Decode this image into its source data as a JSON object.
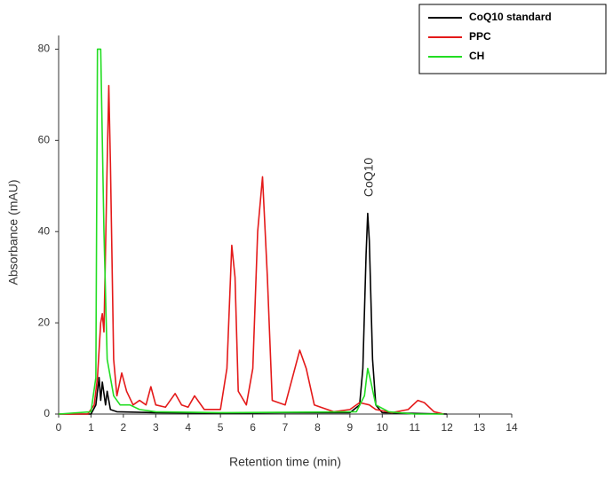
{
  "chart_data": {
    "type": "line",
    "x_label": "Retention time (min)",
    "y_label": "Absorbance (mAU)",
    "annotation": "CoQ10",
    "xlim": [
      0,
      14
    ],
    "xticks": [
      0,
      1,
      2,
      3,
      4,
      5,
      6,
      7,
      8,
      9,
      10,
      11,
      12,
      13,
      14
    ],
    "ylim": [
      0,
      83
    ],
    "yticks": [
      0,
      20,
      40,
      60,
      80
    ],
    "legend": "top-right",
    "series": [
      {
        "name": "CoQ10 standard",
        "color": "#000000",
        "x": [
          0,
          1.0,
          1.15,
          1.25,
          1.3,
          1.35,
          1.45,
          1.5,
          1.6,
          1.8,
          3,
          5,
          7,
          9.0,
          9.3,
          9.4,
          9.5,
          9.55,
          9.6,
          9.7,
          9.8,
          10,
          12
        ],
        "values": [
          0,
          0,
          2,
          8,
          3,
          7,
          2,
          5,
          1,
          0.5,
          0.3,
          0.2,
          0.3,
          0.3,
          2,
          10,
          35,
          44,
          38,
          12,
          2,
          0.3,
          0
        ]
      },
      {
        "name": "PPC",
        "color": "#e41a1a",
        "x": [
          0,
          0.9,
          1.1,
          1.2,
          1.3,
          1.35,
          1.4,
          1.5,
          1.55,
          1.6,
          1.7,
          1.8,
          1.95,
          2.1,
          2.3,
          2.5,
          2.7,
          2.85,
          3.0,
          3.3,
          3.6,
          3.8,
          4.0,
          4.2,
          4.5,
          5.0,
          5.2,
          5.35,
          5.45,
          5.55,
          5.8,
          6.0,
          6.15,
          6.3,
          6.45,
          6.6,
          7.0,
          7.3,
          7.45,
          7.65,
          7.9,
          8.5,
          9.0,
          9.3,
          9.6,
          9.8,
          10.3,
          10.8,
          11.1,
          11.3,
          11.6,
          11.9
        ],
        "values": [
          0,
          0,
          2,
          8,
          20,
          22,
          18,
          55,
          72,
          55,
          12,
          4,
          9,
          5,
          2,
          3,
          2,
          6,
          2,
          1.5,
          4.5,
          2,
          1.5,
          4,
          1,
          1,
          10,
          37,
          30,
          5,
          2,
          10,
          40,
          52,
          30,
          3,
          2,
          10,
          14,
          10,
          2,
          0.5,
          1,
          2.5,
          2,
          1,
          0.3,
          1,
          3,
          2.5,
          0.5,
          0
        ]
      },
      {
        "name": "CH",
        "color": "#22dd22",
        "x": [
          0,
          1.0,
          1.15,
          1.2,
          1.3,
          1.4,
          1.5,
          1.7,
          1.9,
          2.2,
          2.5,
          3,
          5,
          9.2,
          9.45,
          9.55,
          9.65,
          9.8,
          10.2,
          11,
          11.9
        ],
        "values": [
          0,
          0.5,
          8,
          80,
          80,
          40,
          12,
          4,
          2,
          2,
          1,
          0.5,
          0.3,
          0.5,
          4,
          10,
          7,
          2,
          0.5,
          0,
          0
        ]
      }
    ]
  }
}
